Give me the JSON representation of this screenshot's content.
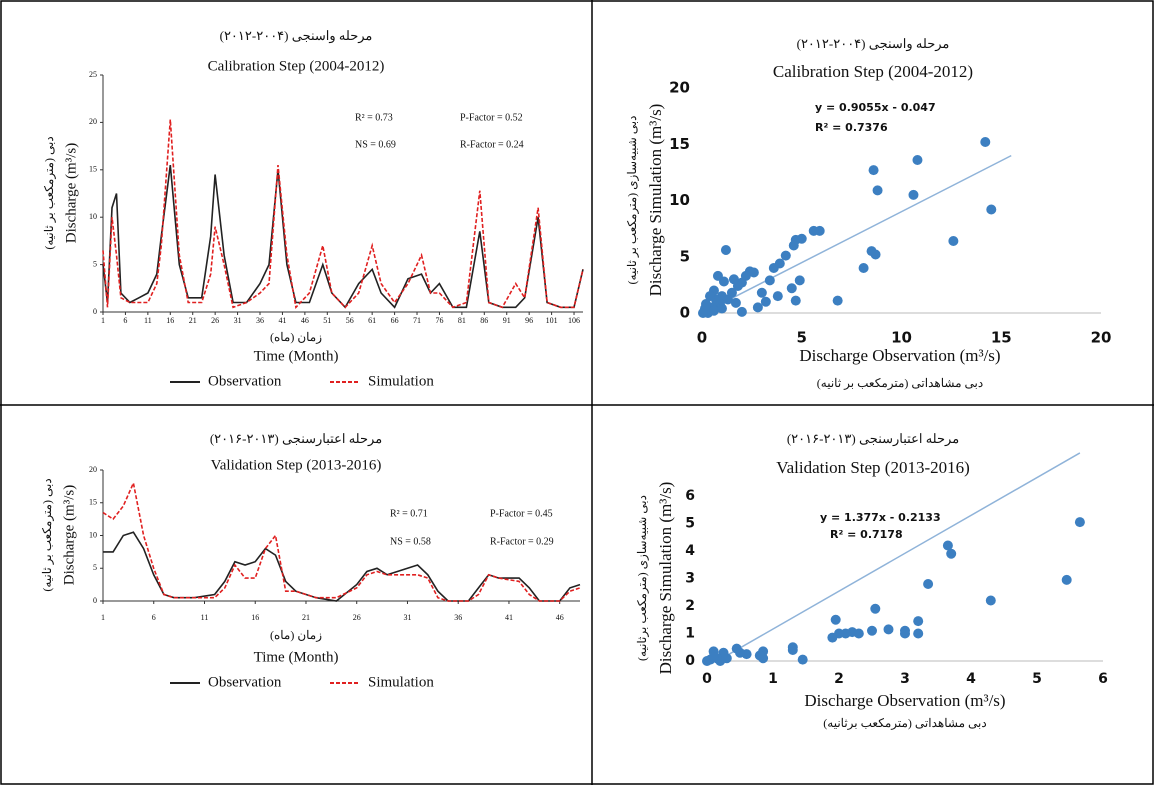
{
  "chart_data": [
    {
      "type": "line",
      "subtitle": "مرحله واسنجی (۲۰۰۴-۲۰۱۲)",
      "title": "Calibration Step (2004-2012)",
      "ylabel": "Discharge (m³/s)",
      "ylabel_secondary": "دبی (مترمکعب بر ثانیه)",
      "xlabel": "Time (Month)",
      "xlabel_secondary": "زمان (ماه)",
      "annotations": [
        "R² = 0.73",
        "P-Factor = 0.52",
        "NS = 0.69",
        "R-Factor = 0.24"
      ],
      "xlim": [
        1,
        108
      ],
      "xticks": [
        1,
        6,
        11,
        16,
        21,
        26,
        31,
        36,
        41,
        46,
        51,
        56,
        61,
        66,
        71,
        76,
        81,
        86,
        91,
        96,
        101,
        106
      ],
      "ylim": [
        0,
        25
      ],
      "yticks": [
        0,
        5,
        10,
        15,
        20,
        25
      ],
      "x": [
        1,
        2,
        3,
        4,
        5,
        7,
        9,
        11,
        13,
        14,
        16,
        18,
        20,
        23,
        25,
        26,
        28,
        30,
        33,
        36,
        38,
        40,
        42,
        44,
        47,
        50,
        52,
        55,
        58,
        61,
        63,
        66,
        69,
        72,
        74,
        76,
        79,
        82,
        85,
        87,
        90,
        93,
        95,
        98,
        100,
        103,
        106,
        108
      ],
      "series": [
        {
          "name": "Observation",
          "color": "#222222",
          "dashed": false,
          "values": [
            5,
            1,
            11,
            12.5,
            2,
            1,
            1.5,
            2,
            4,
            8,
            15.5,
            5,
            1.5,
            1.5,
            8,
            14.5,
            6,
            1,
            1,
            3,
            5,
            15,
            5,
            1,
            1,
            5,
            2,
            0.5,
            3,
            4.5,
            2,
            0.5,
            3.5,
            4,
            2,
            3,
            0.5,
            0.5,
            8.5,
            1,
            0.5,
            0.5,
            1.5,
            10,
            1,
            0.5,
            0.5,
            4.5
          ]
        },
        {
          "name": "Simulation",
          "color": "#e02020",
          "dashed": true,
          "values": [
            6.5,
            0.5,
            10,
            6,
            1.5,
            1,
            1,
            1,
            3,
            7,
            20.3,
            6,
            1,
            1,
            4,
            9,
            5,
            0.5,
            1,
            2,
            3,
            15.5,
            6,
            0.5,
            2,
            7,
            2,
            0.5,
            2,
            7,
            3,
            1,
            3,
            6,
            2,
            2,
            0.5,
            1,
            12.8,
            1,
            0.5,
            3,
            1.5,
            11,
            1,
            0.5,
            0.5,
            4.5
          ]
        }
      ]
    },
    {
      "type": "scatter",
      "subtitle": "مرحله واسنجی (۲۰۰۴-۲۰۱۲)",
      "title": "Calibration Step (2004-2012)",
      "ylabel": "Discharge Simulation (m³/s)",
      "ylabel_secondary": "دبی شبیه‌سازی (مترمکعب بر ثانیه)",
      "xlabel": "Discharge Observation (m³/s)",
      "xlabel_secondary": "دبی مشاهداتی (مترمکعب بر ثانیه)",
      "xlim": [
        0,
        20
      ],
      "xticks": [
        0,
        5,
        10,
        15,
        20
      ],
      "ylim": [
        0,
        20
      ],
      "yticks": [
        0,
        5,
        10,
        15,
        20
      ],
      "color": "#3c7fc1",
      "x": [
        14.2,
        14.5,
        12.6,
        10.8,
        10.6,
        8.8,
        8.6,
        8.7,
        8.5,
        8.1,
        6.8,
        5.9,
        5.6,
        5.0,
        4.7,
        4.6,
        4.9,
        4.5,
        4.7,
        4.2,
        3.9,
        3.6,
        3.8,
        3.4,
        3.2,
        3.0,
        2.6,
        2.4,
        2.2,
        2.0,
        1.8,
        1.6,
        1.5,
        1.3,
        1.2,
        1.1,
        1.0,
        0.9,
        0.8,
        0.7,
        0.6,
        0.5,
        0.4,
        0.3,
        0.2,
        0.1,
        0.3,
        0.6,
        1.0,
        1.7,
        2.0,
        2.8,
        0.15,
        0.05
      ],
      "values": [
        15.2,
        9.2,
        6.4,
        13.6,
        10.5,
        10.9,
        12.7,
        5.2,
        5.5,
        4.0,
        1.1,
        7.3,
        7.3,
        6.6,
        6.5,
        6.0,
        2.9,
        2.2,
        1.1,
        5.1,
        4.4,
        4.0,
        1.5,
        2.9,
        1.0,
        1.8,
        3.6,
        3.7,
        3.3,
        2.7,
        2.4,
        3.0,
        1.8,
        1.2,
        5.6,
        2.8,
        1.5,
        0.8,
        3.3,
        1.2,
        2.0,
        0.5,
        1.5,
        0.3,
        0.8,
        0.1,
        0.0,
        0.2,
        0.4,
        0.9,
        0.1,
        0.5,
        0.4,
        0.0
      ],
      "trendline": {
        "slope": 0.9055,
        "intercept": -0.047,
        "xrange": [
          0,
          15.5
        ],
        "color": "#8fb3d9"
      },
      "trendline_labels": [
        "y = 0.9055x - 0.047",
        "R² = 0.7376"
      ]
    },
    {
      "type": "line",
      "subtitle": "مرحله اعتبارسنجی (۲۰۱۳-۲۰۱۶)",
      "title": "Validation Step (2013-2016)",
      "ylabel": "Discharge (m³/s)",
      "ylabel_secondary": "دبی (مترمکعب بر ثانیه)",
      "xlabel": "Time (Month)",
      "xlabel_secondary": "زمان (ماه)",
      "annotations": [
        "R² = 0.71",
        "P-Factor = 0.45",
        "NS = 0.58",
        "R-Factor = 0.29"
      ],
      "xlim": [
        1,
        48
      ],
      "xticks": [
        1,
        6,
        11,
        16,
        21,
        26,
        31,
        36,
        41,
        46
      ],
      "ylim": [
        0,
        20
      ],
      "yticks": [
        0,
        5,
        10,
        15,
        20
      ],
      "x": [
        1,
        2,
        3,
        4,
        5,
        6,
        7,
        8,
        10,
        12,
        13,
        14,
        15,
        16,
        17,
        18,
        19,
        20,
        22,
        24,
        26,
        27,
        28,
        29,
        31,
        32,
        33,
        34,
        35,
        37,
        38,
        39,
        40,
        42,
        43,
        44,
        46,
        47,
        48
      ],
      "series": [
        {
          "name": "Observation",
          "color": "#222222",
          "dashed": false,
          "values": [
            7.5,
            7.5,
            10,
            10.5,
            8,
            4,
            1,
            0.5,
            0.5,
            1,
            3,
            6,
            5.5,
            6,
            8,
            7,
            3,
            1.5,
            0.5,
            0,
            2.5,
            4.5,
            5,
            4,
            5,
            5.5,
            4,
            1.5,
            0,
            0,
            2,
            4,
            3.5,
            3.5,
            2,
            0,
            0,
            2,
            2.5
          ]
        },
        {
          "name": "Simulation",
          "color": "#e02020",
          "dashed": true,
          "values": [
            13.5,
            12.5,
            14.5,
            18,
            10,
            5,
            1,
            0.5,
            0.5,
            0.5,
            2,
            5.5,
            3.5,
            3.5,
            8,
            10,
            1.5,
            1.5,
            0.5,
            0.5,
            2,
            4,
            4.5,
            4,
            4,
            4,
            3.5,
            0.5,
            0,
            0,
            1,
            4,
            3.5,
            3,
            1,
            0,
            0,
            1.5,
            2
          ]
        }
      ]
    },
    {
      "type": "scatter",
      "subtitle": "مرحله اعتبارسنجی (۲۰۱۳-۲۰۱۶)",
      "title": "Validation Step (2013-2016)",
      "ylabel": "Discharge Simulation (m³/s)",
      "ylabel_secondary": "دبی شبیه‌سازی (مترمکعب برثانیه)",
      "xlabel": "Discharge Observation (m³/s)",
      "xlabel_secondary": "دبی مشاهداتی (مترمکعب برثانیه)",
      "xlim": [
        0,
        6
      ],
      "xticks": [
        0,
        1,
        2,
        3,
        4,
        5,
        6
      ],
      "ylim": [
        0,
        6
      ],
      "yticks": [
        0,
        1,
        2,
        3,
        4,
        5,
        6
      ],
      "color": "#3c7fc1",
      "x": [
        5.65,
        5.45,
        4.3,
        3.7,
        3.65,
        3.35,
        3.2,
        3.2,
        3.0,
        3.0,
        2.75,
        2.55,
        2.5,
        2.3,
        2.2,
        2.1,
        2.0,
        1.95,
        1.9,
        1.45,
        1.3,
        1.3,
        0.85,
        0.85,
        0.8,
        0.6,
        0.5,
        0.45,
        0.3,
        0.25,
        0.2,
        0.15,
        0.1,
        0.05,
        0.0,
        0.1
      ],
      "values": [
        5.05,
        2.95,
        2.2,
        3.9,
        4.2,
        2.8,
        1.45,
        1.0,
        1.0,
        1.1,
        1.15,
        1.9,
        1.1,
        1.0,
        1.05,
        1.0,
        1.0,
        1.5,
        0.85,
        0.05,
        0.5,
        0.4,
        0.35,
        0.1,
        0.2,
        0.25,
        0.3,
        0.45,
        0.1,
        0.3,
        0.0,
        0.1,
        0.35,
        0.05,
        0.0,
        0.15
      ],
      "trendline": {
        "slope": 1.377,
        "intercept": -0.2133,
        "xrange": [
          0.15,
          5.65
        ],
        "color": "#8fb3d9"
      },
      "trendline_labels": [
        "y = 1.377x - 0.2133",
        "R² = 0.7178"
      ]
    }
  ]
}
